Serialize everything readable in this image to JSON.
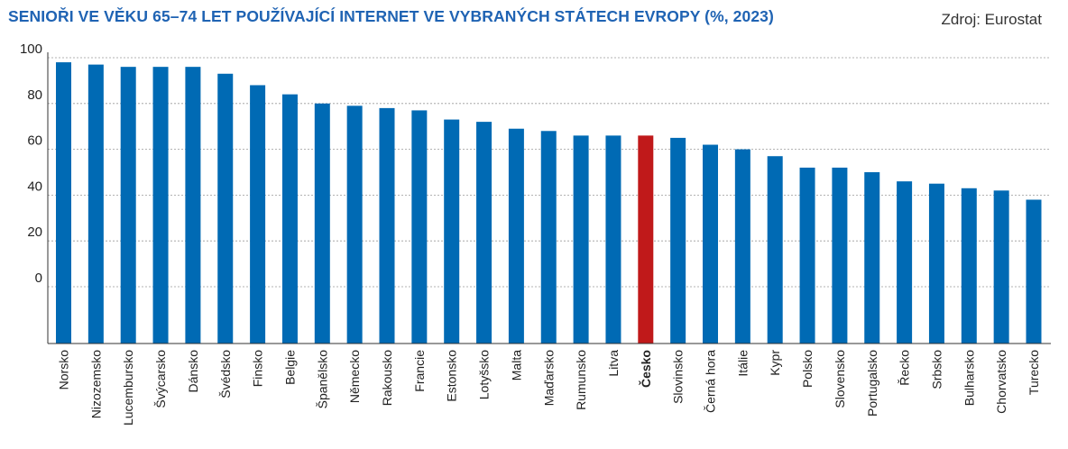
{
  "title": "SENIOŘI VE VĚKU 65–74 LET POUŽÍVAJÍCÍ INTERNET VE VYBRANÝCH STÁTECH EVROPY (%, 2023)",
  "source": "Zdroj: Eurostat",
  "colors": {
    "bar": "#006ab4",
    "highlight": "#c0191a",
    "title": "#1f63b3",
    "grid": "#9a9a9a"
  },
  "chart_data": {
    "type": "bar",
    "categories": [
      "Norsko",
      "Nizozemsko",
      "Lucembursko",
      "Švýcarsko",
      "Dánsko",
      "Švédsko",
      "Finsko",
      "Belgie",
      "Španělsko",
      "Německo",
      "Rakousko",
      "Francie",
      "Estonsko",
      "Lotyšsko",
      "Malta",
      "Maďarsko",
      "Rumunsko",
      "Litva",
      "Česko",
      "Slovinsko",
      "Černá hora",
      "Itálie",
      "Kypr",
      "Polsko",
      "Slovensko",
      "Portugalsko",
      "Řecko",
      "Srbsko",
      "Bulharsko",
      "Chorvatsko",
      "Turecko"
    ],
    "values": [
      98,
      97,
      96,
      96,
      96,
      93,
      88,
      84,
      80,
      79,
      78,
      77,
      73,
      72,
      69,
      68,
      66,
      66,
      66,
      65,
      62,
      60,
      57,
      52,
      52,
      50,
      46,
      45,
      43,
      42,
      38
    ],
    "highlight": "Česko",
    "yticks": [
      0,
      20,
      40,
      60,
      80,
      100
    ],
    "ylim": [
      0,
      100
    ],
    "grid": true
  }
}
